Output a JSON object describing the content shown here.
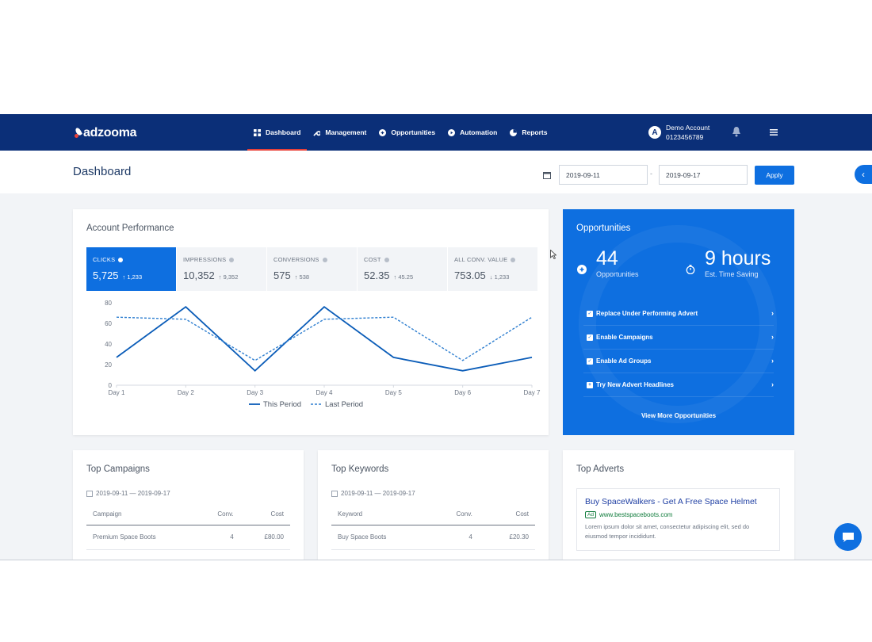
{
  "brand": {
    "logo_text": "adzooma",
    "accent": "#0e6fe0",
    "nav_bg": "#0b2f78",
    "active_underline": "#e8423a"
  },
  "nav": {
    "items": [
      {
        "label": "Dashboard",
        "icon": "dashboard-icon",
        "active": true
      },
      {
        "label": "Management",
        "icon": "wrench-icon"
      },
      {
        "label": "Opportunities",
        "icon": "opportunities-icon"
      },
      {
        "label": "Automation",
        "icon": "automation-icon"
      },
      {
        "label": "Reports",
        "icon": "reports-icon"
      }
    ]
  },
  "account": {
    "avatar_letter": "A",
    "name": "Demo Account",
    "id": "0123456789"
  },
  "header": {
    "title": "Dashboard",
    "date_from": "2019-09-11",
    "date_sep": "-",
    "date_to": "2019-09-17",
    "apply_label": "Apply"
  },
  "performance": {
    "title": "Account Performance",
    "metrics": [
      {
        "label": "CLICKS",
        "value": "5,725",
        "delta": "↑ 1,233",
        "active": true
      },
      {
        "label": "IMPRESSIONS",
        "value": "10,352",
        "delta": "↑ 9,352"
      },
      {
        "label": "CONVERSIONS",
        "value": "575",
        "delta": "↑ 538"
      },
      {
        "label": "COST",
        "value": "52.35",
        "delta": "↑ 45.25"
      },
      {
        "label": "ALL CONV. VALUE",
        "value": "753.05",
        "delta": "↓ 1,233"
      }
    ]
  },
  "chart_data": {
    "type": "line",
    "categories": [
      "Day 1",
      "Day 2",
      "Day 3",
      "Day 4",
      "Day 5",
      "Day 6",
      "Day 7"
    ],
    "series": [
      {
        "name": "This Period",
        "values": [
          27,
          76,
          14,
          76,
          27,
          14,
          27
        ],
        "color": "#0a5cb8",
        "dashed": false
      },
      {
        "name": "Last Period",
        "values": [
          66,
          64,
          24,
          64,
          66,
          24,
          66
        ],
        "color": "#2f7fd0",
        "dashed": true
      }
    ],
    "yticks": [
      0,
      20,
      40,
      60,
      80
    ],
    "ylim": [
      0,
      80
    ],
    "grid": false,
    "legend": "bottom"
  },
  "opportunities": {
    "title": "Opportunities",
    "count": "44",
    "count_label": "Opportunities",
    "saving": "9 hours",
    "saving_label": "Est. Time Saving",
    "items": [
      {
        "label": "Replace Under Performing Advert"
      },
      {
        "label": "Enable Campaigns"
      },
      {
        "label": "Enable Ad Groups"
      },
      {
        "label": "Try New Advert Headlines"
      }
    ],
    "more_label": "View More Opportunities"
  },
  "top_campaigns": {
    "title": "Top Campaigns",
    "date_range": "2019-09-11 — 2019-09-17",
    "columns": [
      "Campaign",
      "Conv.",
      "Cost"
    ],
    "rows": [
      {
        "name": "Premium Space Boots",
        "conv": "4",
        "cost": "£80.00"
      }
    ]
  },
  "top_keywords": {
    "title": "Top Keywords",
    "date_range": "2019-09-11 — 2019-09-17",
    "columns": [
      "Keyword",
      "Conv.",
      "Cost"
    ],
    "rows": [
      {
        "name": "Buy Space Boots",
        "conv": "4",
        "cost": "£20.30"
      }
    ]
  },
  "top_adverts": {
    "title": "Top Adverts",
    "headline": "Buy SpaceWalkers - Get A Free Space Helmet",
    "badge": "Ad",
    "url": "www.bestspaceboots.com",
    "description": "Lorem ipsum dolor sit amet, consectetur adipiscing elit, sed do eiusmod tempor incididunt."
  }
}
